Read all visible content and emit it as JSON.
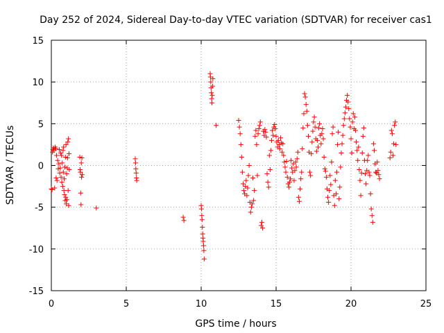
{
  "chart_data": {
    "type": "scatter",
    "title": "Day 252 of 2024, Sidereal Day-to-day VTEC variation (SDTVAR) for receiver cas1",
    "xlabel": "GPS time / hours",
    "ylabel": "SDTVAR / TECUs",
    "xlim": [
      0,
      25
    ],
    "ylim": [
      -15,
      15
    ],
    "xticks": [
      0,
      5,
      10,
      15,
      20,
      25
    ],
    "yticks": [
      -15,
      -10,
      -5,
      0,
      5,
      10,
      15
    ],
    "grid": true,
    "marker": "+",
    "color": "#ff0000",
    "series": [
      {
        "name": "cas1",
        "points": [
          [
            0.0,
            -2.8
          ],
          [
            0.05,
            -2.9
          ],
          [
            0.08,
            1.6
          ],
          [
            0.1,
            1.9
          ],
          [
            0.14,
            2.1
          ],
          [
            0.18,
            1.8
          ],
          [
            0.22,
            -2.7
          ],
          [
            0.26,
            2.2
          ],
          [
            0.3,
            2.0
          ],
          [
            0.32,
            -1.5
          ],
          [
            0.35,
            1.2
          ],
          [
            0.38,
            -1.8
          ],
          [
            0.42,
            0.6
          ],
          [
            0.46,
            -0.4
          ],
          [
            0.5,
            0.2
          ],
          [
            0.53,
            1.9
          ],
          [
            0.56,
            -0.9
          ],
          [
            0.6,
            -0.3
          ],
          [
            0.62,
            1.5
          ],
          [
            0.65,
            -1.4
          ],
          [
            0.68,
            1.2
          ],
          [
            0.7,
            -2.0
          ],
          [
            0.73,
            0.3
          ],
          [
            0.76,
            -2.5
          ],
          [
            0.78,
            1.8
          ],
          [
            0.8,
            -0.8
          ],
          [
            0.82,
            2.2
          ],
          [
            0.84,
            -3.0
          ],
          [
            0.86,
            -1.6
          ],
          [
            0.88,
            -3.5
          ],
          [
            0.9,
            -0.2
          ],
          [
            0.92,
            -4.2
          ],
          [
            0.94,
            1.0
          ],
          [
            0.96,
            -3.8
          ],
          [
            0.98,
            2.5
          ],
          [
            1.0,
            -4.6
          ],
          [
            1.02,
            -1.0
          ],
          [
            1.04,
            -4.1
          ],
          [
            1.06,
            -0.3
          ],
          [
            1.08,
            0.9
          ],
          [
            1.1,
            2.8
          ],
          [
            1.12,
            -3.0
          ],
          [
            1.14,
            3.2
          ],
          [
            1.16,
            -4.8
          ],
          [
            1.18,
            1.4
          ],
          [
            1.2,
            -0.5
          ],
          [
            1.9,
            1.0
          ],
          [
            1.92,
            -0.5
          ],
          [
            1.94,
            -0.8
          ],
          [
            1.96,
            -3.3
          ],
          [
            1.98,
            -4.7
          ],
          [
            2.0,
            0.3
          ],
          [
            2.02,
            -1.4
          ],
          [
            2.04,
            0.9
          ],
          [
            2.06,
            -1.1
          ],
          [
            3.0,
            -5.1
          ],
          [
            5.6,
            0.8
          ],
          [
            5.62,
            0.3
          ],
          [
            5.64,
            -0.4
          ],
          [
            5.66,
            -0.9
          ],
          [
            5.68,
            -1.5
          ],
          [
            5.7,
            -1.8
          ],
          [
            8.8,
            -6.2
          ],
          [
            8.85,
            -6.6
          ],
          [
            10.0,
            -4.8
          ],
          [
            10.02,
            -5.2
          ],
          [
            10.04,
            -6.0
          ],
          [
            10.06,
            -6.5
          ],
          [
            10.08,
            -7.4
          ],
          [
            10.1,
            -8.2
          ],
          [
            10.12,
            -8.7
          ],
          [
            10.14,
            -9.1
          ],
          [
            10.16,
            -9.6
          ],
          [
            10.18,
            -10.2
          ],
          [
            10.2,
            -11.2
          ],
          [
            10.6,
            11.0
          ],
          [
            10.62,
            10.6
          ],
          [
            10.64,
            10.0
          ],
          [
            10.66,
            9.3
          ],
          [
            10.68,
            8.7
          ],
          [
            10.7,
            8.0
          ],
          [
            10.72,
            7.5
          ],
          [
            10.74,
            8.4
          ],
          [
            10.76,
            9.5
          ],
          [
            10.78,
            10.4
          ],
          [
            11.0,
            4.8
          ],
          [
            12.5,
            5.4
          ],
          [
            12.55,
            4.6
          ],
          [
            12.6,
            3.8
          ],
          [
            12.65,
            2.5
          ],
          [
            12.7,
            1.0
          ],
          [
            12.75,
            -0.8
          ],
          [
            12.8,
            -2.2
          ],
          [
            12.85,
            -3.0
          ],
          [
            12.9,
            -3.4
          ],
          [
            12.95,
            -2.5
          ],
          [
            13.0,
            -1.8
          ],
          [
            13.05,
            -3.6
          ],
          [
            13.1,
            -2.7
          ],
          [
            13.15,
            -1.2
          ],
          [
            13.2,
            0.0
          ],
          [
            13.25,
            -4.4
          ],
          [
            13.3,
            -5.6
          ],
          [
            13.35,
            -5.0
          ],
          [
            13.4,
            -4.6
          ],
          [
            13.45,
            -1.5
          ],
          [
            13.5,
            -4.2
          ],
          [
            13.55,
            -3.0
          ],
          [
            13.6,
            3.5
          ],
          [
            13.65,
            4.2
          ],
          [
            13.7,
            2.5
          ],
          [
            13.75,
            -1.2
          ],
          [
            13.8,
            3.8
          ],
          [
            13.85,
            4.4
          ],
          [
            13.9,
            4.8
          ],
          [
            13.95,
            5.2
          ],
          [
            14.0,
            -7.2
          ],
          [
            14.05,
            -6.8
          ],
          [
            14.1,
            -7.5
          ],
          [
            14.15,
            4.1
          ],
          [
            14.2,
            3.6
          ],
          [
            14.25,
            4.3
          ],
          [
            14.3,
            4.0
          ],
          [
            14.35,
            3.4
          ],
          [
            14.4,
            -1.0
          ],
          [
            14.45,
            -2.0
          ],
          [
            14.5,
            -2.6
          ],
          [
            14.55,
            1.2
          ],
          [
            14.6,
            -0.5
          ],
          [
            14.65,
            1.8
          ],
          [
            14.7,
            3.0
          ],
          [
            14.75,
            4.2
          ],
          [
            14.8,
            3.6
          ],
          [
            14.85,
            4.6
          ],
          [
            14.9,
            4.9
          ],
          [
            14.95,
            4.4
          ],
          [
            15.0,
            3.5
          ],
          [
            15.05,
            2.8
          ],
          [
            15.1,
            2.2
          ],
          [
            15.15,
            3.0
          ],
          [
            15.2,
            2.5
          ],
          [
            15.25,
            2.0
          ],
          [
            15.3,
            3.3
          ],
          [
            15.35,
            2.7
          ],
          [
            15.4,
            1.6
          ],
          [
            15.45,
            2.6
          ],
          [
            15.5,
            1.2
          ],
          [
            15.55,
            0.4
          ],
          [
            15.6,
            -0.2
          ],
          [
            15.65,
            -0.8
          ],
          [
            15.7,
            0.5
          ],
          [
            15.75,
            -1.4
          ],
          [
            15.8,
            -2.2
          ],
          [
            15.85,
            -2.6
          ],
          [
            15.9,
            -2.0
          ],
          [
            15.95,
            -1.6
          ],
          [
            16.0,
            0.6
          ],
          [
            16.05,
            -0.3
          ],
          [
            16.1,
            -0.8
          ],
          [
            16.15,
            0.2
          ],
          [
            16.2,
            -1.8
          ],
          [
            16.25,
            -0.6
          ],
          [
            16.3,
            0.4
          ],
          [
            16.35,
            -0.2
          ],
          [
            16.4,
            0.8
          ],
          [
            16.45,
            1.6
          ],
          [
            16.5,
            -3.8
          ],
          [
            16.55,
            -4.3
          ],
          [
            16.6,
            -2.8
          ],
          [
            16.65,
            -1.6
          ],
          [
            16.7,
            -0.8
          ],
          [
            16.75,
            2.0
          ],
          [
            16.8,
            4.5
          ],
          [
            16.85,
            6.2
          ],
          [
            16.9,
            8.6
          ],
          [
            16.95,
            8.2
          ],
          [
            17.0,
            7.3
          ],
          [
            17.05,
            6.5
          ],
          [
            17.1,
            4.8
          ],
          [
            17.15,
            3.5
          ],
          [
            17.2,
            1.6
          ],
          [
            17.25,
            -0.8
          ],
          [
            17.3,
            -1.2
          ],
          [
            17.35,
            1.4
          ],
          [
            17.4,
            2.8
          ],
          [
            17.45,
            4.1
          ],
          [
            17.5,
            5.2
          ],
          [
            17.55,
            5.8
          ],
          [
            17.6,
            4.6
          ],
          [
            17.65,
            3.2
          ],
          [
            17.7,
            1.7
          ],
          [
            17.75,
            3.0
          ],
          [
            17.8,
            2.2
          ],
          [
            17.85,
            4.5
          ],
          [
            17.9,
            5.0
          ],
          [
            17.95,
            3.6
          ],
          [
            18.0,
            2.6
          ],
          [
            18.05,
            3.8
          ],
          [
            18.1,
            4.4
          ],
          [
            18.15,
            3.2
          ],
          [
            18.2,
            1.0
          ],
          [
            18.25,
            -0.4
          ],
          [
            18.3,
            -0.7
          ],
          [
            18.35,
            -1.4
          ],
          [
            18.4,
            -2.8
          ],
          [
            18.45,
            -3.8
          ],
          [
            18.5,
            -4.4
          ],
          [
            18.55,
            -3.0
          ],
          [
            18.6,
            -1.2
          ],
          [
            18.65,
            -2.3
          ],
          [
            18.7,
            0.4
          ],
          [
            18.75,
            3.8
          ],
          [
            18.8,
            4.6
          ],
          [
            18.85,
            -3.6
          ],
          [
            18.9,
            -4.8
          ],
          [
            18.95,
            -1.8
          ],
          [
            19.0,
            -3.4
          ],
          [
            19.05,
            -0.8
          ],
          [
            19.1,
            2.5
          ],
          [
            19.15,
            4.0
          ],
          [
            19.2,
            -4.0
          ],
          [
            19.25,
            -2.6
          ],
          [
            19.3,
            -0.2
          ],
          [
            19.35,
            1.5
          ],
          [
            19.4,
            2.6
          ],
          [
            19.45,
            3.6
          ],
          [
            19.5,
            4.8
          ],
          [
            19.55,
            5.6
          ],
          [
            19.6,
            6.3
          ],
          [
            19.65,
            7.0
          ],
          [
            19.7,
            7.8
          ],
          [
            19.75,
            8.4
          ],
          [
            19.8,
            7.6
          ],
          [
            19.85,
            6.8
          ],
          [
            19.9,
            5.6
          ],
          [
            19.95,
            4.6
          ],
          [
            20.0,
            3.2
          ],
          [
            20.05,
            1.5
          ],
          [
            20.1,
            5.2
          ],
          [
            20.15,
            6.2
          ],
          [
            20.2,
            4.4
          ],
          [
            20.25,
            5.8
          ],
          [
            20.3,
            4.2
          ],
          [
            20.35,
            2.8
          ],
          [
            20.4,
            1.8
          ],
          [
            20.45,
            0.6
          ],
          [
            20.5,
            2.2
          ],
          [
            20.55,
            -0.5
          ],
          [
            20.6,
            -1.8
          ],
          [
            20.65,
            -3.6
          ],
          [
            20.7,
            -0.9
          ],
          [
            20.75,
            1.5
          ],
          [
            20.8,
            3.5
          ],
          [
            20.85,
            4.5
          ],
          [
            20.9,
            0.6
          ],
          [
            20.95,
            -1.0
          ],
          [
            21.0,
            -2.2
          ],
          [
            21.05,
            -0.6
          ],
          [
            21.1,
            0.6
          ],
          [
            21.15,
            1.2
          ],
          [
            21.2,
            -0.8
          ],
          [
            21.25,
            -1.2
          ],
          [
            21.3,
            -3.4
          ],
          [
            21.35,
            -5.2
          ],
          [
            21.4,
            -6.0
          ],
          [
            21.45,
            -6.8
          ],
          [
            21.5,
            2.6
          ],
          [
            21.55,
            1.8
          ],
          [
            21.6,
            0.2
          ],
          [
            21.65,
            -0.8
          ],
          [
            21.7,
            -0.9
          ],
          [
            21.75,
            0.4
          ],
          [
            21.8,
            -0.6
          ],
          [
            21.85,
            -1.1
          ],
          [
            21.9,
            -1.6
          ],
          [
            22.6,
            0.9
          ],
          [
            22.65,
            1.6
          ],
          [
            22.7,
            4.2
          ],
          [
            22.75,
            3.8
          ],
          [
            22.8,
            1.2
          ],
          [
            22.85,
            2.6
          ],
          [
            22.9,
            4.8
          ],
          [
            22.95,
            5.2
          ],
          [
            23.0,
            2.5
          ]
        ]
      }
    ]
  }
}
